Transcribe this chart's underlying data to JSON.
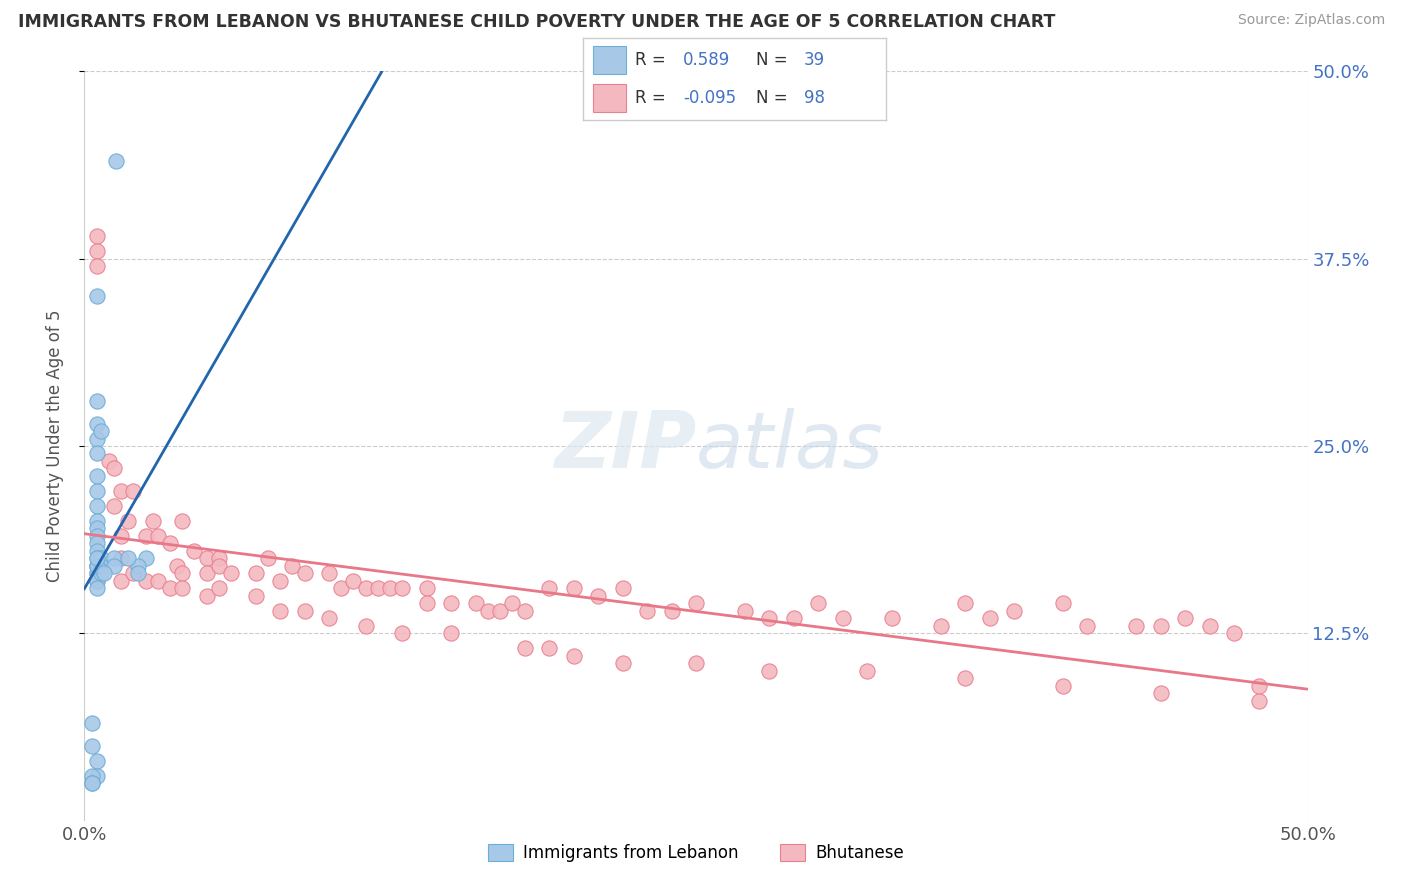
{
  "title": "IMMIGRANTS FROM LEBANON VS BHUTANESE CHILD POVERTY UNDER THE AGE OF 5 CORRELATION CHART",
  "source": "Source: ZipAtlas.com",
  "ylabel": "Child Poverty Under the Age of 5",
  "xlim": [
    0,
    0.5
  ],
  "ylim": [
    0,
    0.5
  ],
  "blue_color": "#a8c8e8",
  "blue_edge_color": "#6baed6",
  "pink_color": "#f4b8c0",
  "pink_edge_color": "#e88090",
  "blue_line_color": "#2166ac",
  "pink_line_color": "#e87888",
  "watermark": "ZIPatlas",
  "legend_series1": "Immigrants from Lebanon",
  "legend_series2": "Bhutanese",
  "background_color": "#ffffff",
  "grid_color": "#cccccc",
  "blue_scatter_x": [
    0.013,
    0.005,
    0.005,
    0.005,
    0.005,
    0.007,
    0.005,
    0.005,
    0.005,
    0.005,
    0.005,
    0.005,
    0.005,
    0.005,
    0.005,
    0.005,
    0.005,
    0.005,
    0.005,
    0.005,
    0.007,
    0.007,
    0.007,
    0.005,
    0.005,
    0.012,
    0.012,
    0.008,
    0.025,
    0.022,
    0.022,
    0.018,
    0.005,
    0.005,
    0.003,
    0.003,
    0.003,
    0.003,
    0.003
  ],
  "blue_scatter_y": [
    0.44,
    0.35,
    0.28,
    0.265,
    0.255,
    0.26,
    0.245,
    0.23,
    0.22,
    0.21,
    0.2,
    0.195,
    0.19,
    0.185,
    0.18,
    0.175,
    0.17,
    0.165,
    0.16,
    0.155,
    0.175,
    0.17,
    0.165,
    0.17,
    0.175,
    0.175,
    0.17,
    0.165,
    0.175,
    0.17,
    0.165,
    0.175,
    0.04,
    0.03,
    0.03,
    0.065,
    0.05,
    0.025,
    0.025
  ],
  "pink_scatter_x": [
    0.005,
    0.005,
    0.005,
    0.01,
    0.012,
    0.015,
    0.012,
    0.015,
    0.018,
    0.02,
    0.025,
    0.028,
    0.03,
    0.035,
    0.038,
    0.04,
    0.04,
    0.045,
    0.05,
    0.055,
    0.05,
    0.055,
    0.06,
    0.07,
    0.08,
    0.075,
    0.085,
    0.09,
    0.1,
    0.105,
    0.11,
    0.115,
    0.12,
    0.125,
    0.13,
    0.14,
    0.14,
    0.15,
    0.16,
    0.165,
    0.17,
    0.175,
    0.18,
    0.19,
    0.2,
    0.21,
    0.22,
    0.23,
    0.24,
    0.25,
    0.27,
    0.28,
    0.29,
    0.3,
    0.31,
    0.33,
    0.35,
    0.36,
    0.37,
    0.38,
    0.4,
    0.41,
    0.43,
    0.44,
    0.45,
    0.46,
    0.47,
    0.48,
    0.005,
    0.005,
    0.005,
    0.015,
    0.015,
    0.02,
    0.025,
    0.03,
    0.035,
    0.04,
    0.05,
    0.055,
    0.07,
    0.08,
    0.09,
    0.1,
    0.115,
    0.13,
    0.15,
    0.18,
    0.19,
    0.2,
    0.22,
    0.25,
    0.28,
    0.32,
    0.36,
    0.4,
    0.44,
    0.48
  ],
  "pink_scatter_y": [
    0.39,
    0.38,
    0.37,
    0.24,
    0.235,
    0.22,
    0.21,
    0.19,
    0.2,
    0.22,
    0.19,
    0.2,
    0.19,
    0.185,
    0.17,
    0.165,
    0.2,
    0.18,
    0.175,
    0.175,
    0.165,
    0.17,
    0.165,
    0.165,
    0.16,
    0.175,
    0.17,
    0.165,
    0.165,
    0.155,
    0.16,
    0.155,
    0.155,
    0.155,
    0.155,
    0.155,
    0.145,
    0.145,
    0.145,
    0.14,
    0.14,
    0.145,
    0.14,
    0.155,
    0.155,
    0.15,
    0.155,
    0.14,
    0.14,
    0.145,
    0.14,
    0.135,
    0.135,
    0.145,
    0.135,
    0.135,
    0.13,
    0.145,
    0.135,
    0.14,
    0.145,
    0.13,
    0.13,
    0.13,
    0.135,
    0.13,
    0.125,
    0.09,
    0.17,
    0.165,
    0.16,
    0.175,
    0.16,
    0.165,
    0.16,
    0.16,
    0.155,
    0.155,
    0.15,
    0.155,
    0.15,
    0.14,
    0.14,
    0.135,
    0.13,
    0.125,
    0.125,
    0.115,
    0.115,
    0.11,
    0.105,
    0.105,
    0.1,
    0.1,
    0.095,
    0.09,
    0.085,
    0.08
  ]
}
